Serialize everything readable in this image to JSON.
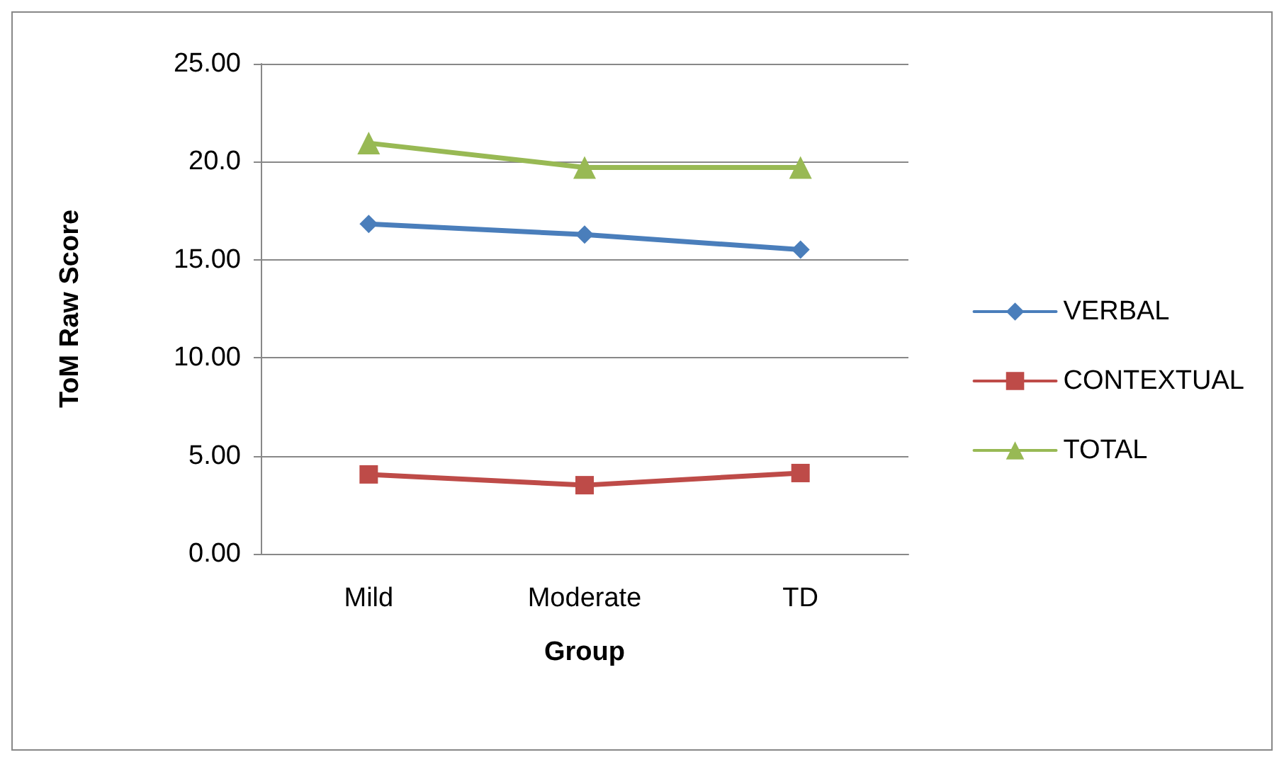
{
  "chart_data": {
    "type": "line",
    "xlabel": "Group",
    "ylabel": "ToM Raw Score",
    "categories": [
      "Mild",
      "Moderate",
      "TD"
    ],
    "series": [
      {
        "name": "VERBAL",
        "color": "#4a7ebb",
        "marker": "diamond",
        "values": [
          16.83,
          16.28,
          15.52
        ]
      },
      {
        "name": "CONTEXTUAL",
        "color": "#be4b48",
        "marker": "square",
        "values": [
          4.05,
          3.5,
          4.12
        ]
      },
      {
        "name": "TOTAL",
        "color": "#98b954",
        "marker": "triangle",
        "values": [
          20.95,
          19.71,
          19.71
        ]
      }
    ],
    "ylim": [
      0,
      25
    ],
    "yticks": [
      {
        "value": 0,
        "label": "0.00"
      },
      {
        "value": 5,
        "label": "5.00"
      },
      {
        "value": 10,
        "label": "10.00"
      },
      {
        "value": 15,
        "label": "15.00"
      },
      {
        "value": 20,
        "label": "20.0"
      },
      {
        "value": 25,
        "label": "25.00"
      }
    ],
    "grid": "y",
    "legend": "right",
    "line_style": "solid"
  }
}
